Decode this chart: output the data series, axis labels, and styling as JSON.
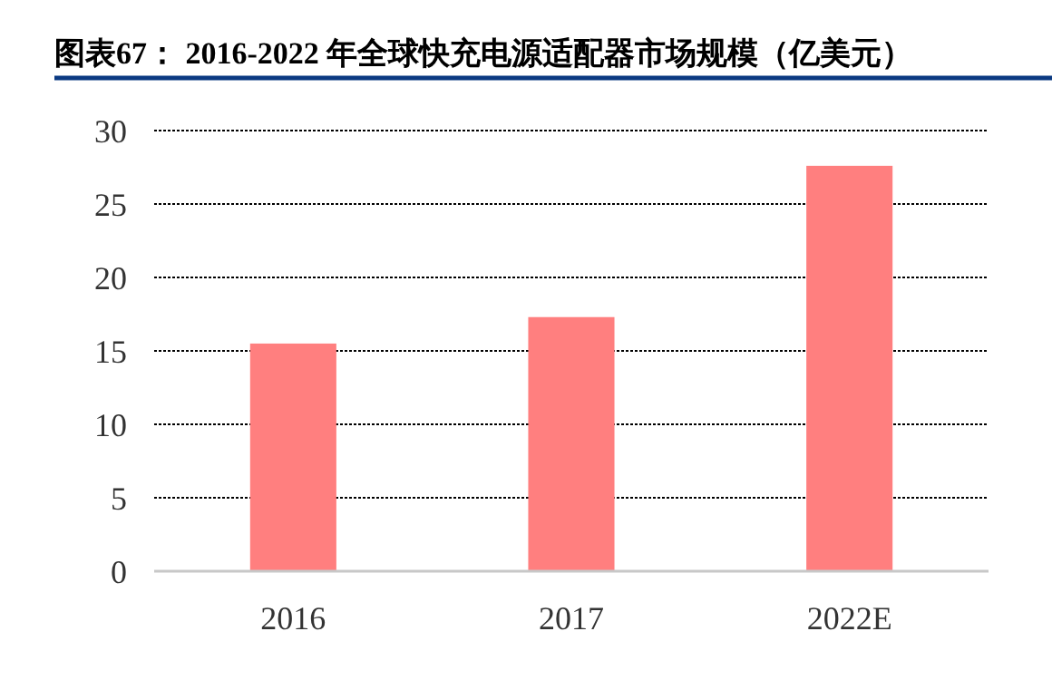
{
  "chart_data": {
    "type": "bar",
    "title": "图表67：  2016-2022 年全球快充电源适配器市场规模（亿美元）",
    "categories": [
      "2016",
      "2017",
      "2022E"
    ],
    "values": [
      15.5,
      17.3,
      27.6
    ],
    "color": "#ff7f7f",
    "ylim": [
      0,
      30
    ],
    "yticks": [
      0,
      5,
      10,
      15,
      20,
      25,
      30
    ],
    "grid": "y"
  }
}
